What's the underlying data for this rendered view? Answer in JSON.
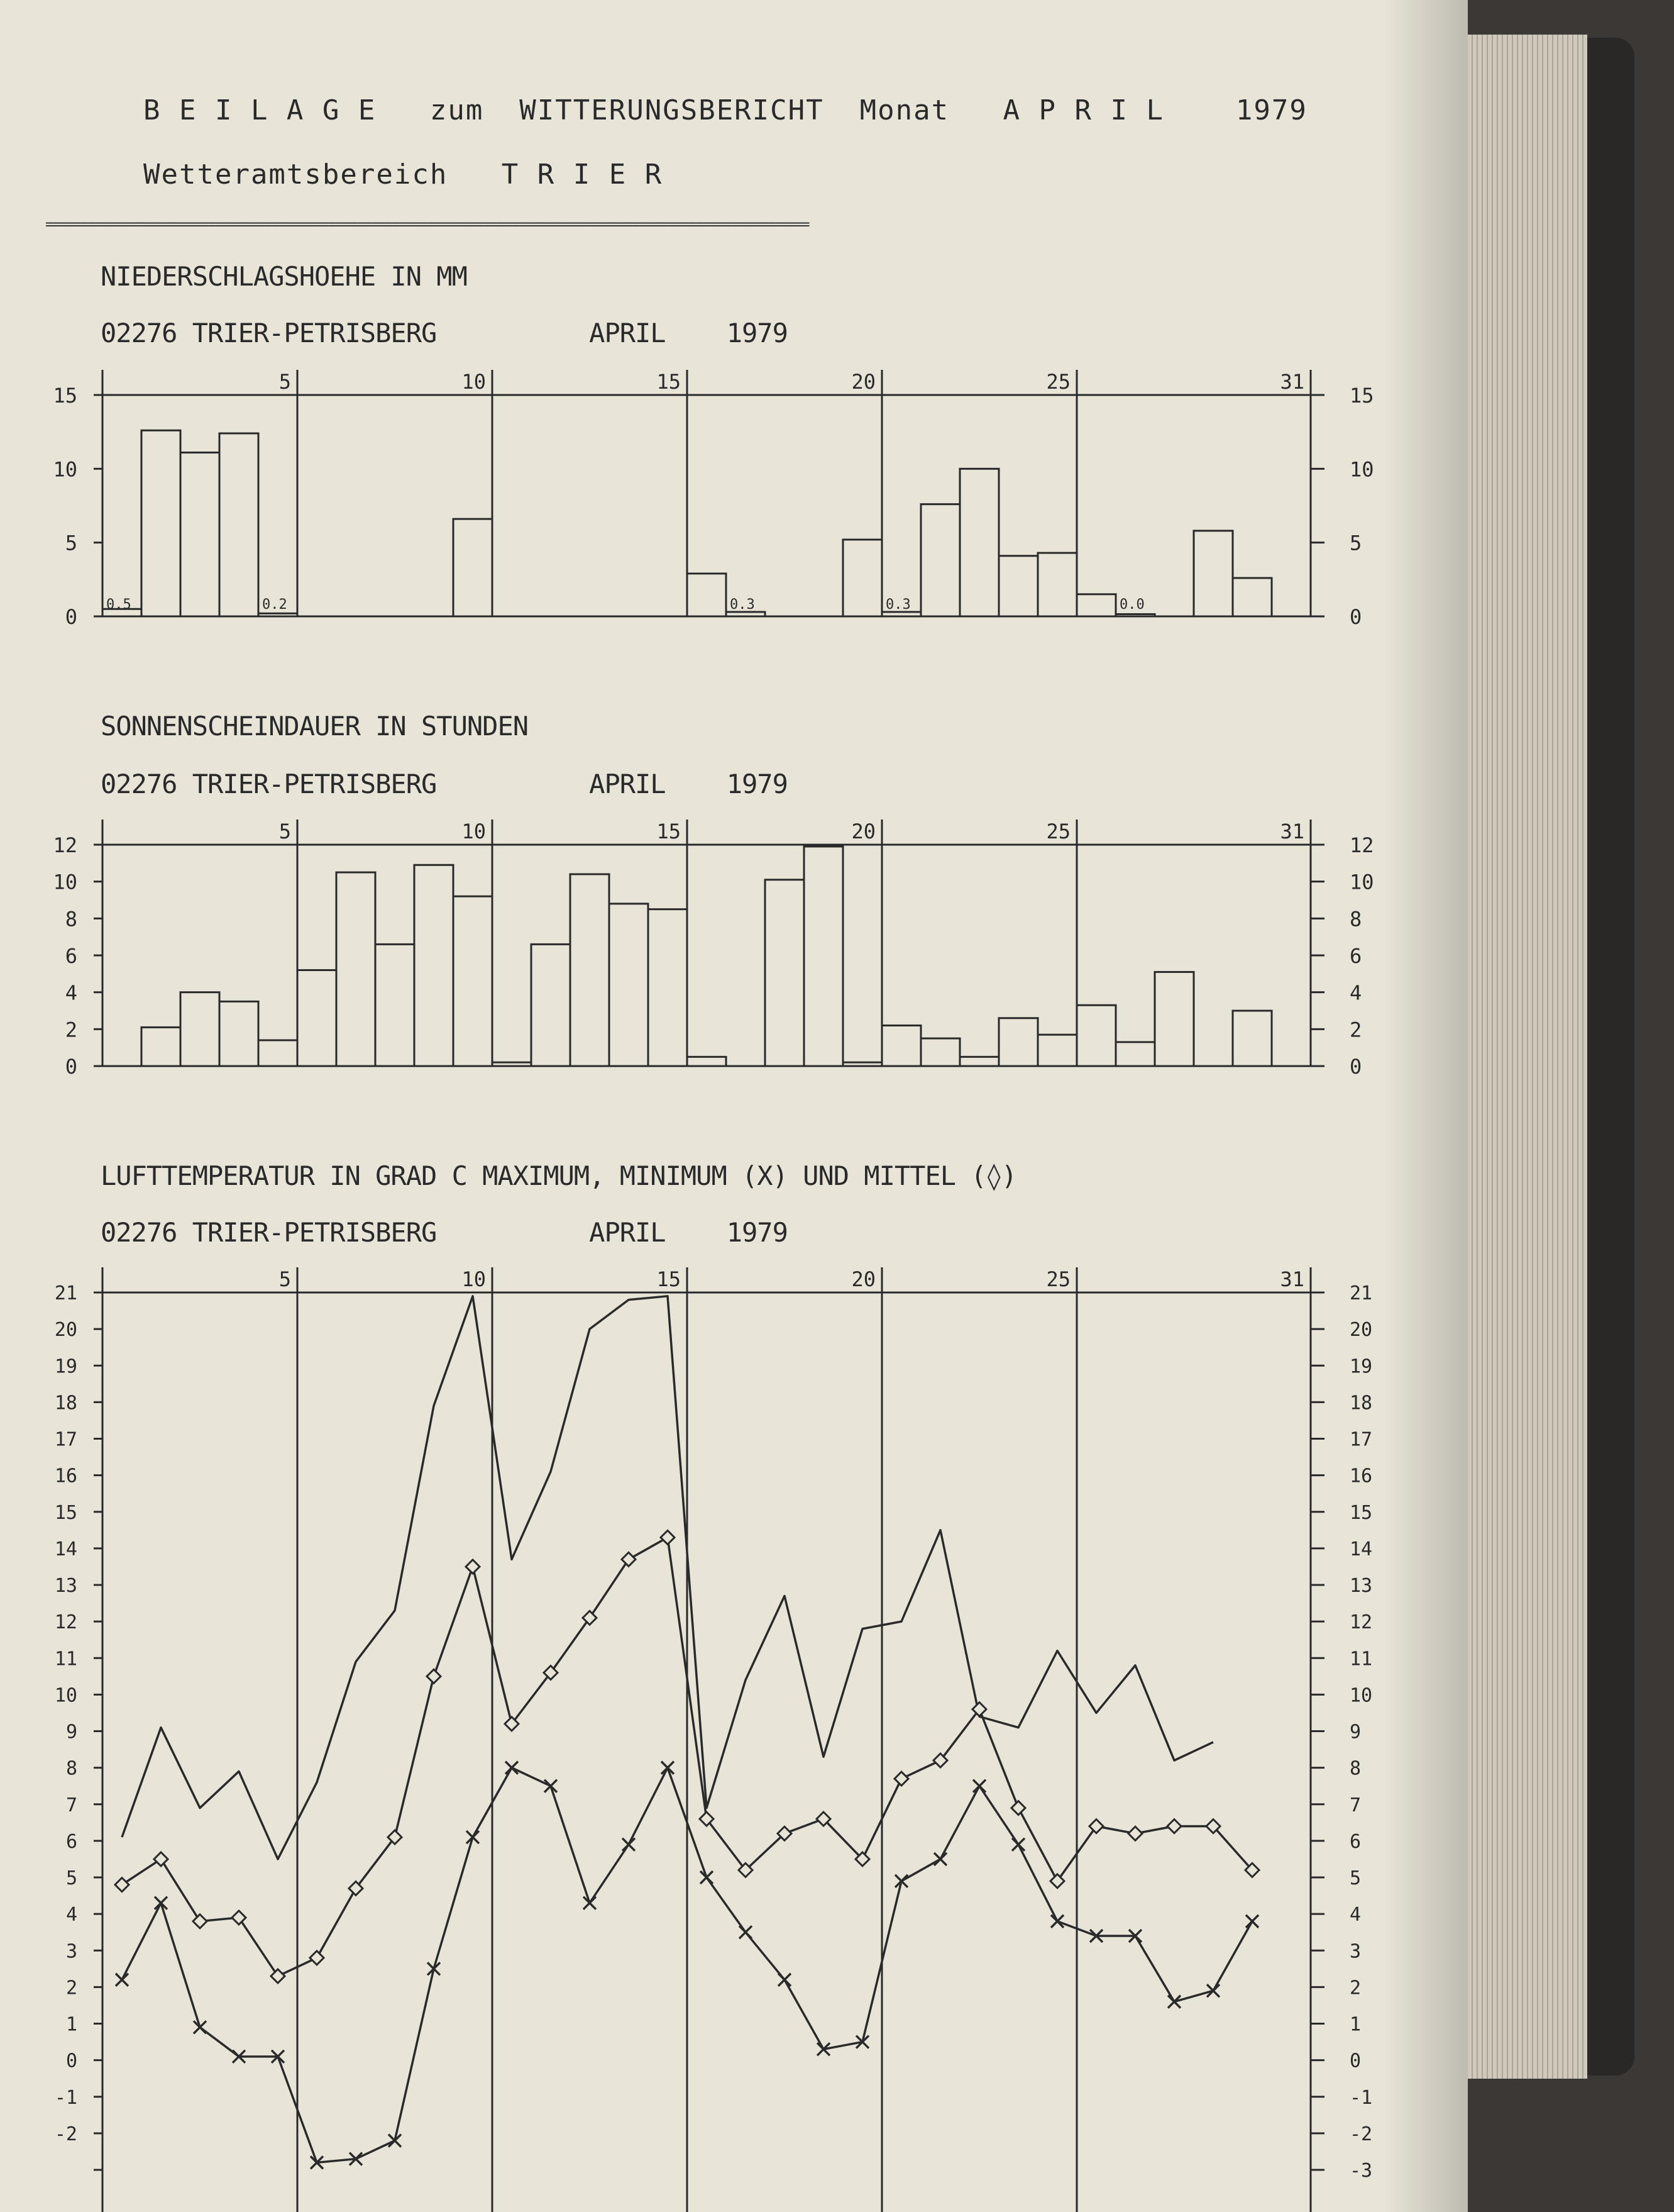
{
  "header": {
    "line1": "B E I L A G E   zum  WITTERUNGSBERICHT  Monat   A P R I L    1979",
    "line2": "Wetteramtsbereich   T R I E R",
    "rule": "============================================================================================================"
  },
  "colors": {
    "paper": "#e8e4d8",
    "ink": "#2a2a2a"
  },
  "chart_data": [
    {
      "type": "bar",
      "title": "NIEDERSCHLAGSHOEHE IN MM",
      "subtitle": "02276 TRIER-PETRISBERG          APRIL    1979",
      "days": [
        1,
        2,
        3,
        4,
        5,
        6,
        7,
        8,
        9,
        10,
        11,
        12,
        13,
        14,
        15,
        16,
        17,
        18,
        19,
        20,
        21,
        22,
        23,
        24,
        25,
        26,
        27,
        28,
        29,
        30
      ],
      "values": [
        0.5,
        12.6,
        11.1,
        12.4,
        0.2,
        null,
        null,
        null,
        null,
        6.6,
        null,
        null,
        null,
        null,
        null,
        2.9,
        0.3,
        null,
        null,
        5.2,
        0.3,
        7.6,
        10.0,
        4.1,
        4.3,
        1.5,
        0.0,
        null,
        5.8,
        2.6
      ],
      "value_labels": [
        {
          "day": 1,
          "text": "0.5"
        },
        {
          "day": 5,
          "text": "0.2"
        },
        {
          "day": 17,
          "text": "0.3"
        },
        {
          "day": 21,
          "text": "0.3"
        },
        {
          "day": 27,
          "text": "0.0"
        }
      ],
      "x_ticks": [
        5,
        10,
        15,
        20,
        25,
        31
      ],
      "y_ticks": [
        0,
        5,
        10,
        15
      ],
      "ylim": [
        0,
        15
      ]
    },
    {
      "type": "bar",
      "title": "SONNENSCHEINDAUER IN STUNDEN",
      "subtitle": "02276 TRIER-PETRISBERG          APRIL    1979",
      "days": [
        1,
        2,
        3,
        4,
        5,
        6,
        7,
        8,
        9,
        10,
        11,
        12,
        13,
        14,
        15,
        16,
        17,
        18,
        19,
        20,
        21,
        22,
        23,
        24,
        25,
        26,
        27,
        28,
        29,
        30
      ],
      "values": [
        0,
        2.1,
        4.0,
        3.5,
        1.4,
        5.2,
        10.5,
        6.6,
        10.9,
        9.2,
        0.2,
        6.6,
        10.4,
        8.8,
        8.5,
        0.5,
        0,
        10.1,
        11.9,
        0.2,
        2.2,
        1.5,
        0.5,
        2.6,
        1.7,
        3.3,
        1.3,
        5.1,
        0,
        3.0
      ],
      "x_ticks": [
        5,
        10,
        15,
        20,
        25,
        31
      ],
      "y_ticks": [
        0,
        2,
        4,
        6,
        8,
        10,
        12
      ],
      "ylim": [
        0,
        12
      ]
    },
    {
      "type": "line",
      "title": "LUFTTEMPERATUR IN GRAD C MAXIMUM, MINIMUM (X) UND MITTEL (◊)",
      "subtitle": "02276 TRIER-PETRISBERG          APRIL    1979",
      "days": [
        1,
        2,
        3,
        4,
        5,
        6,
        7,
        8,
        9,
        10,
        11,
        12,
        13,
        14,
        15,
        16,
        17,
        18,
        19,
        20,
        21,
        22,
        23,
        24,
        25,
        26,
        27,
        28,
        29,
        30
      ],
      "series": [
        {
          "values": [
            6.1,
            9.1,
            6.9,
            7.9,
            5.5,
            7.6,
            10.9,
            12.3,
            17.9,
            20.9,
            13.7,
            16.1,
            20.0,
            20.8,
            20.9,
            6.9,
            10.4,
            12.7,
            8.3,
            11.8,
            12.0,
            14.5,
            9.4,
            9.1,
            11.2,
            9.5,
            10.8,
            8.2,
            8.7,
            null
          ]
        },
        {
          "marker": "x",
          "values": [
            2.2,
            4.3,
            0.9,
            0.1,
            0.1,
            -2.8,
            -2.7,
            -2.2,
            2.5,
            6.1,
            8.0,
            7.5,
            4.3,
            5.9,
            8.0,
            5.0,
            3.5,
            2.2,
            0.3,
            0.5,
            4.9,
            5.5,
            7.5,
            5.9,
            3.8,
            3.4,
            3.4,
            1.6,
            1.9,
            3.8
          ]
        },
        {
          "marker": "diamond",
          "values": [
            4.8,
            5.5,
            3.8,
            3.9,
            2.3,
            2.8,
            4.7,
            6.1,
            10.5,
            13.5,
            9.2,
            10.6,
            12.1,
            13.7,
            14.3,
            6.6,
            5.2,
            6.2,
            6.6,
            5.5,
            7.7,
            8.2,
            9.6,
            6.9,
            4.9,
            6.4,
            6.2,
            6.4,
            6.4,
            5.2
          ]
        }
      ],
      "x_ticks": [
        5,
        10,
        15,
        20,
        25,
        31
      ],
      "y_ticks": [
        -3,
        -2,
        -1,
        0,
        1,
        2,
        3,
        4,
        5,
        6,
        7,
        8,
        9,
        10,
        11,
        12,
        13,
        14,
        15,
        16,
        17,
        18,
        19,
        20,
        21
      ],
      "ylim": [
        -3,
        21
      ]
    }
  ]
}
